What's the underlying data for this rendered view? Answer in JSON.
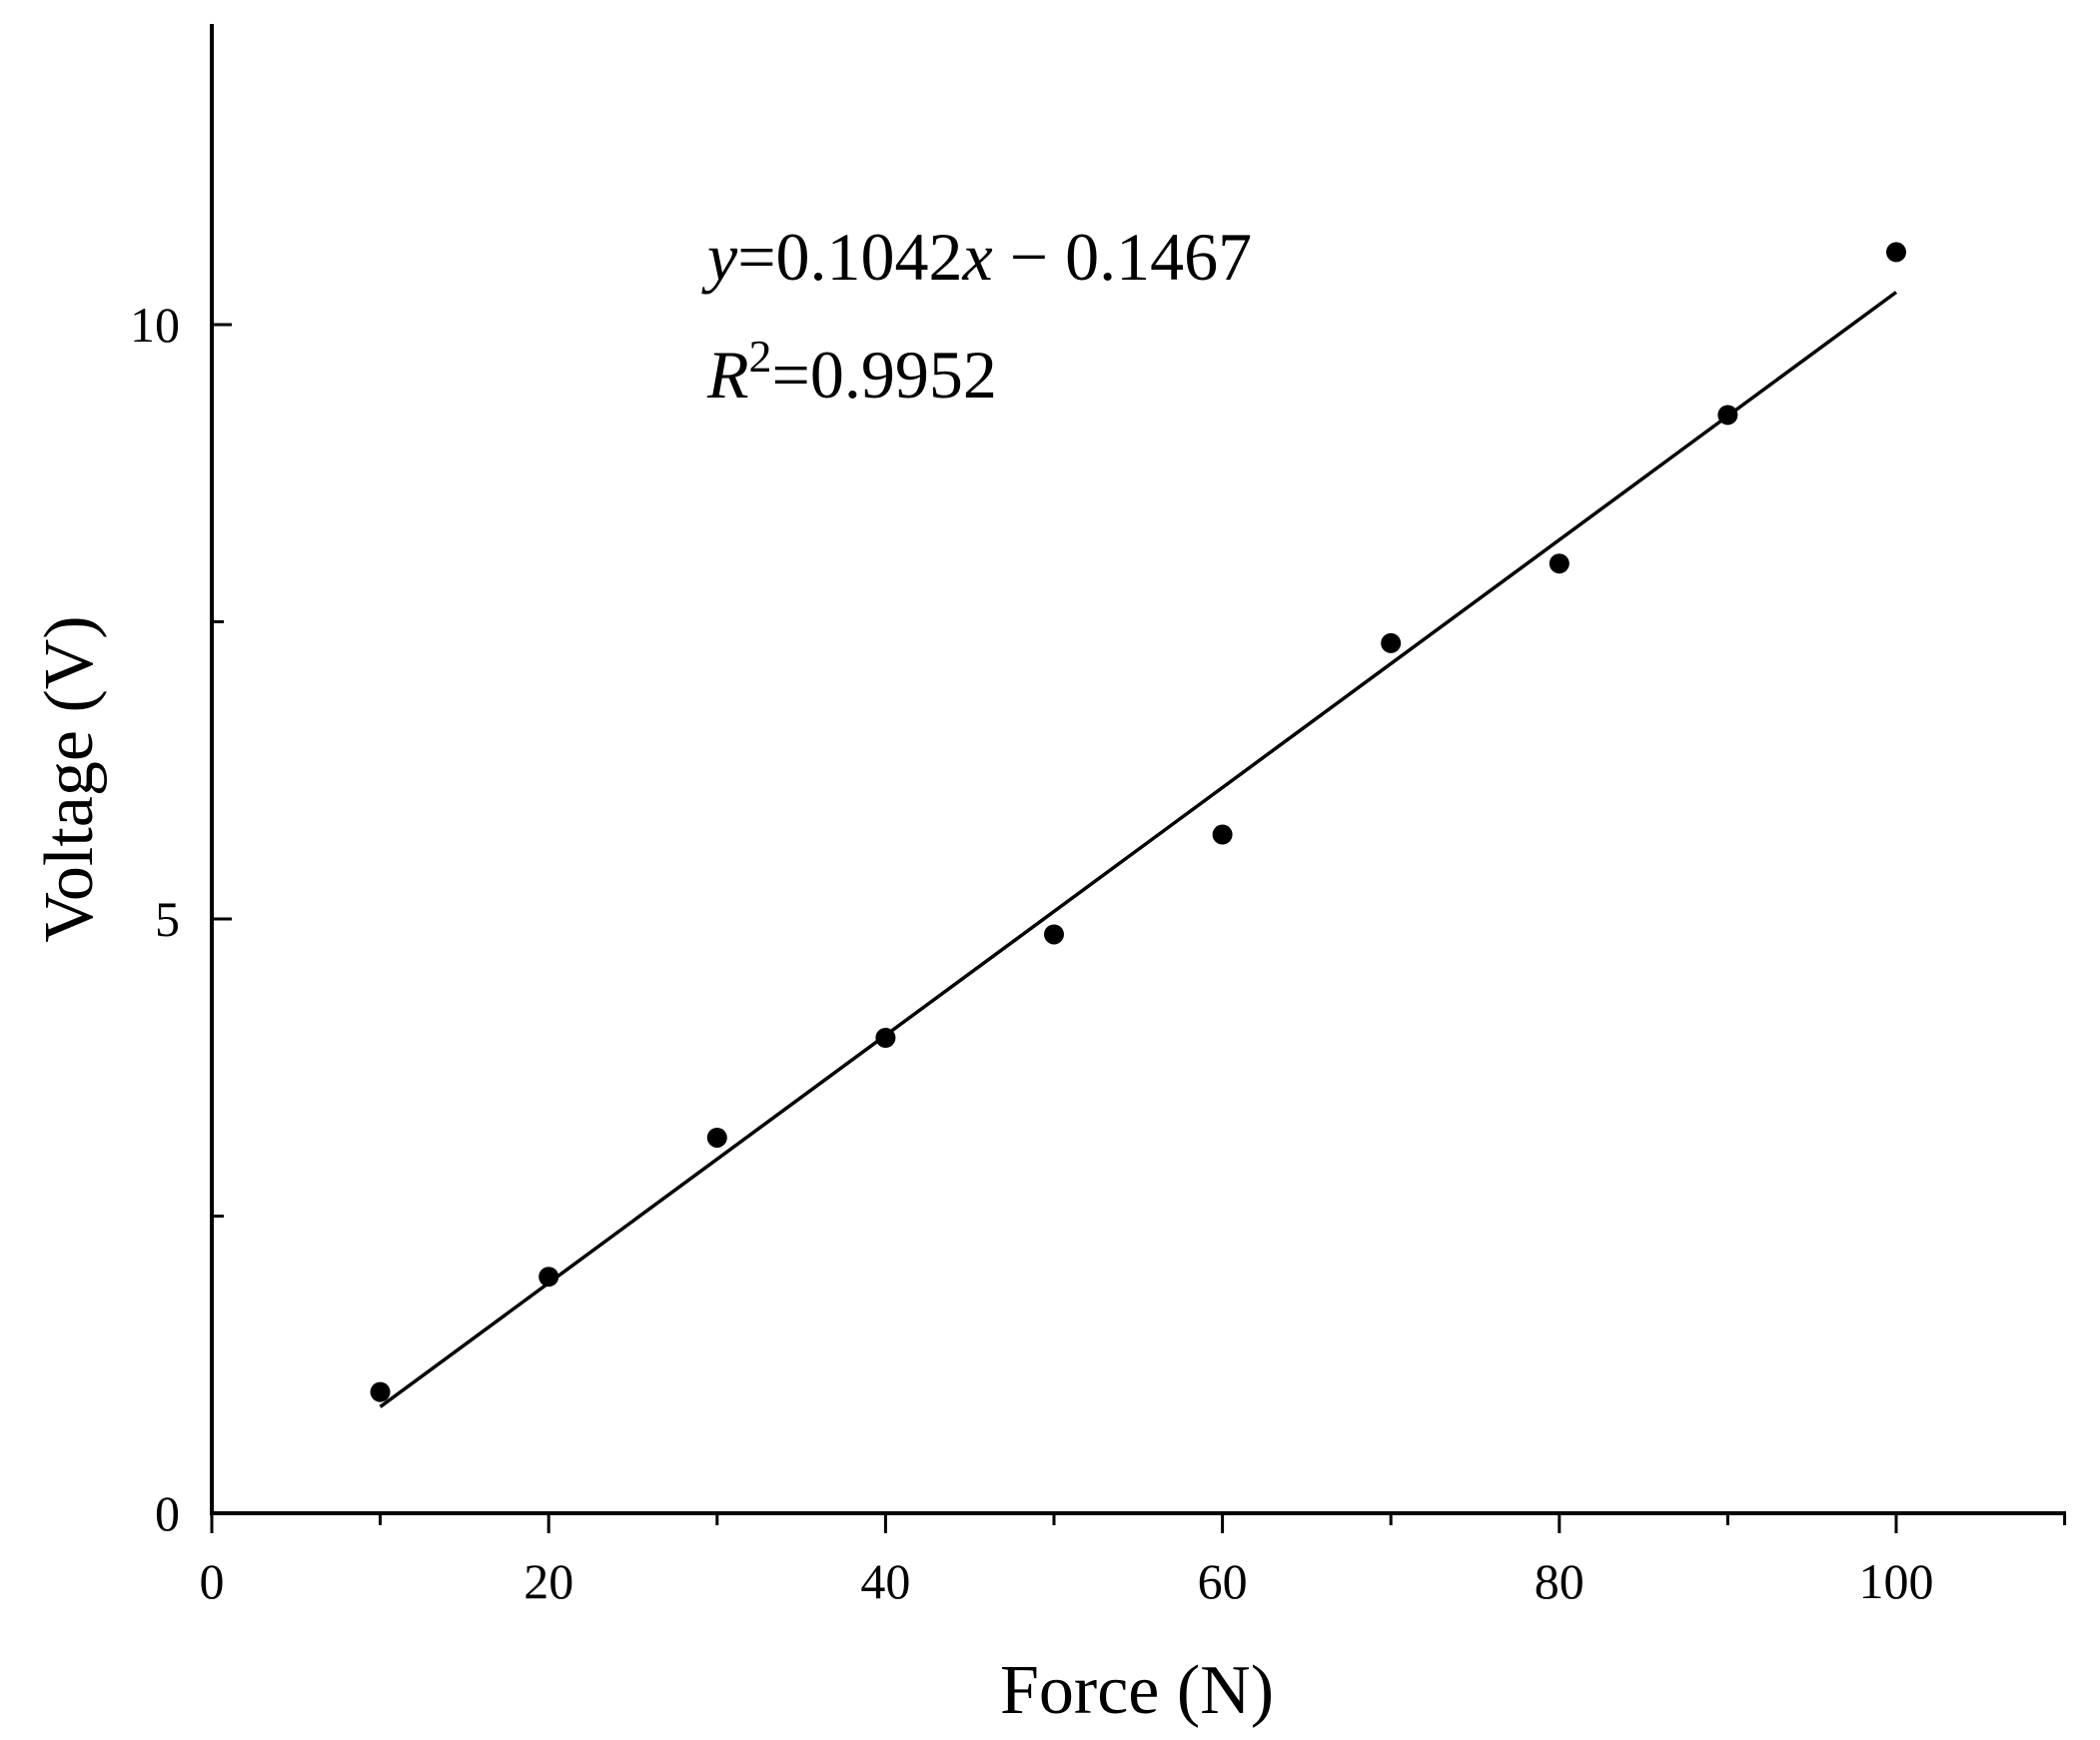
{
  "chart_data": {
    "type": "scatter",
    "xlabel": "Force (N)",
    "ylabel": "Voltage (V)",
    "xlim": [
      0,
      110
    ],
    "ylim": [
      0,
      12.5
    ],
    "x_ticks": [
      0,
      20,
      40,
      60,
      80,
      100
    ],
    "x_minor_ticks": [
      10,
      30,
      50,
      70,
      90,
      110
    ],
    "y_ticks": [
      0,
      5,
      10
    ],
    "y_minor_ticks": [
      2.5,
      7.5
    ],
    "grid": false,
    "series": [
      {
        "x": [
          10,
          20,
          30,
          40,
          50,
          60,
          70,
          80,
          90,
          100
        ],
        "y": [
          1.02,
          1.99,
          3.16,
          4.0,
          4.87,
          5.71,
          7.32,
          7.99,
          9.24,
          10.61
        ],
        "marker": "circle",
        "color": "#000000"
      }
    ],
    "fit_line": {
      "slope": 0.1042,
      "intercept": -0.1467,
      "x_range": [
        10,
        100
      ]
    },
    "annotations": {
      "equation": {
        "y_var": "y",
        "equals_value": "=0.1042",
        "x_var": "x",
        "tail": " − 0.1467"
      },
      "r_squared": {
        "r": "R",
        "sup": "2",
        "value": "=0.9952"
      }
    }
  }
}
